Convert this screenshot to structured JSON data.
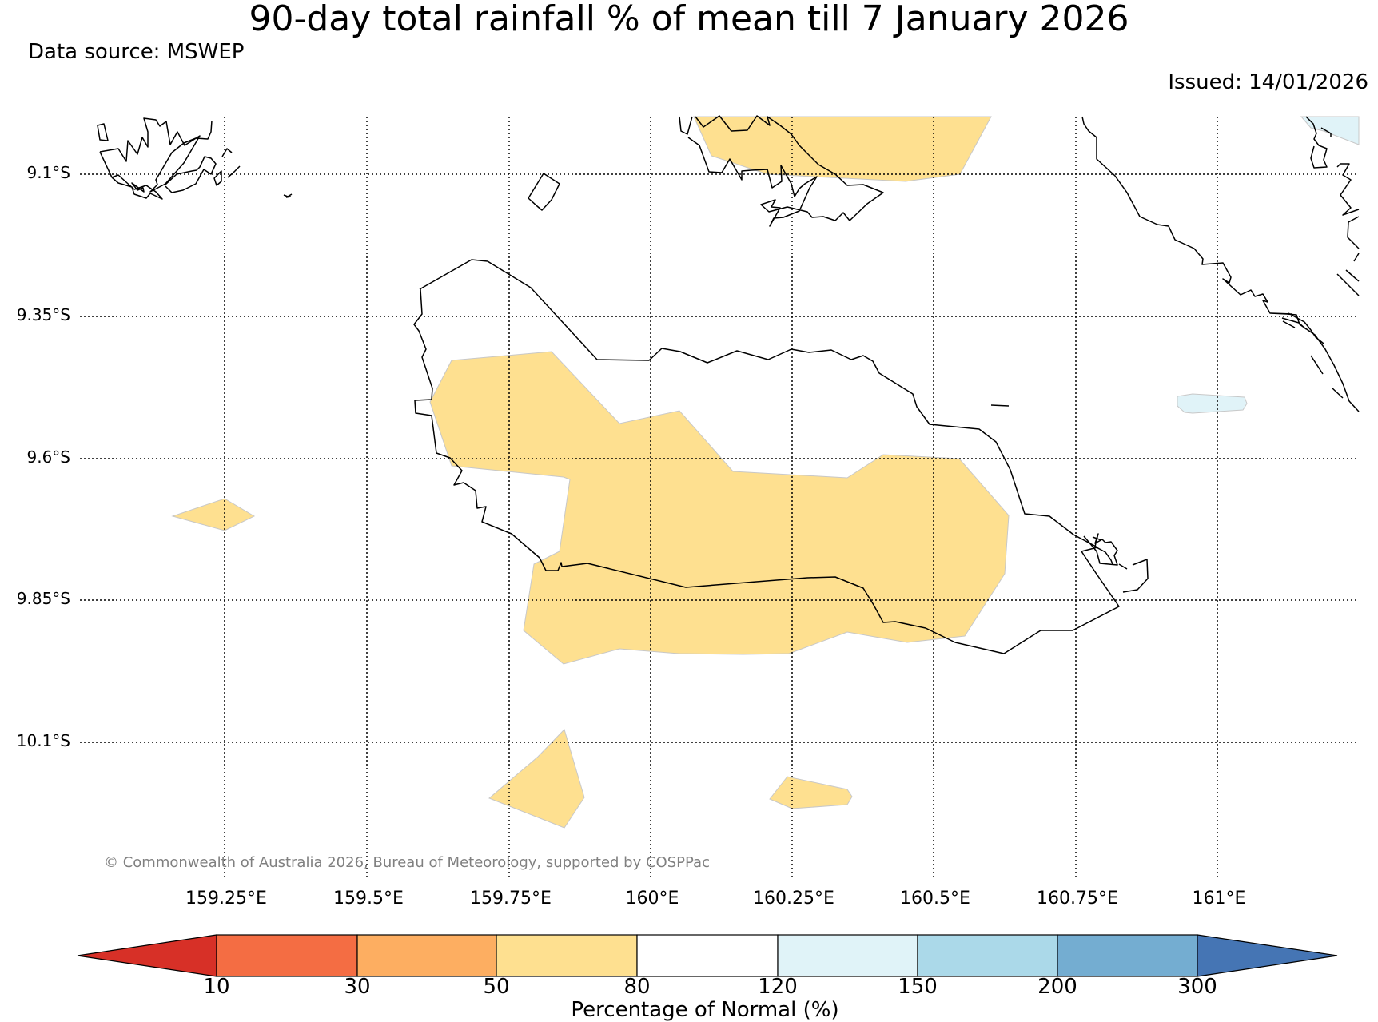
{
  "header": {
    "title": "90-day total rainfall % of mean till 7 January 2026",
    "source": "Data source: MSWEP",
    "issued": "Issued: 14/01/2026"
  },
  "map": {
    "lat_labels": [
      "9.1°S",
      "9.35°S",
      "9.6°S",
      "9.85°S",
      "10.1°S"
    ],
    "lon_labels": [
      "159.25°E",
      "159.5°E",
      "159.75°E",
      "160°E",
      "160.25°E",
      "160.5°E",
      "160.75°E",
      "161°E"
    ],
    "copyright": "© Commonwealth of Australia 2026, Bureau of Meteorology, supported by COSPPac",
    "colors": {
      "land_outline": "#000000",
      "band_50_80": "#fee090",
      "band_120_150": "#e0f3f8",
      "gridline": "#000000"
    }
  },
  "colorbar": {
    "title": "Percentage of Normal (%)",
    "ticks": [
      "10",
      "30",
      "50",
      "80",
      "120",
      "150",
      "200",
      "300"
    ],
    "colors": {
      "below_10": "#d73027",
      "10_30": "#f46d43",
      "30_50": "#fdae61",
      "50_80": "#fee090",
      "80_120": "#ffffff",
      "120_150": "#e0f3f8",
      "150_200": "#abd9e9",
      "200_300": "#74add1",
      "above_300": "#4575b4"
    }
  }
}
